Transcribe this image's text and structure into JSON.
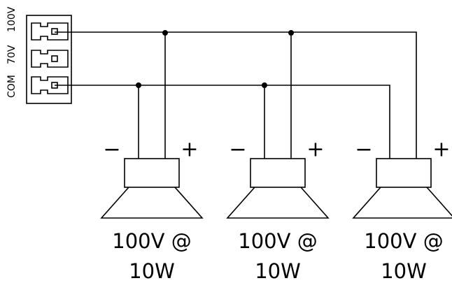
{
  "terminals": [
    "COM",
    "70V",
    "100V"
  ],
  "speakers": [
    {
      "minus": "−",
      "plus": "+",
      "line1": "100V @",
      "line2": "10W"
    },
    {
      "minus": "−",
      "plus": "+",
      "line1": "100V @",
      "line2": "10W"
    },
    {
      "minus": "−",
      "plus": "+",
      "line1": "100V @",
      "line2": "10W"
    }
  ]
}
